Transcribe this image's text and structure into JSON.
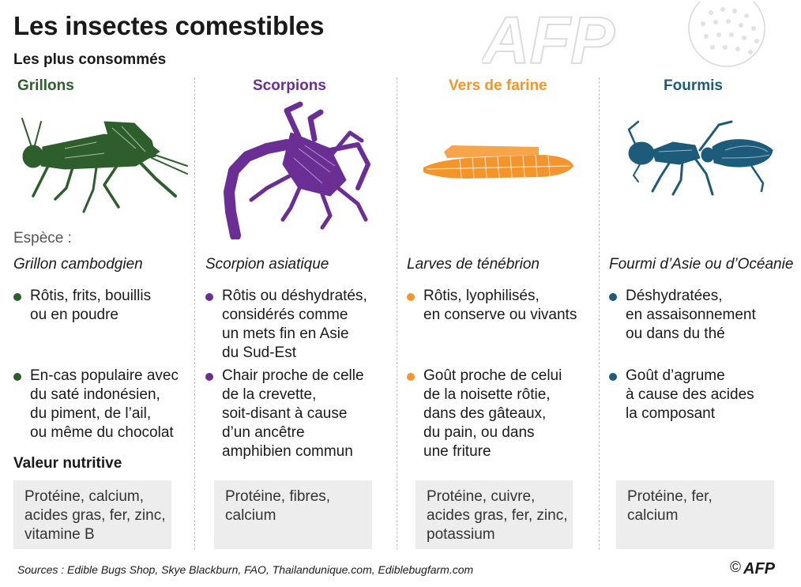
{
  "title": "Les insectes comestibles",
  "subtitle": "Les plus consommés",
  "species_label": "Espèce :",
  "nutrition_title": "Valeur nutritive",
  "colors": {
    "grillons": "#2e5e2b",
    "scorpions": "#6a2e95",
    "vers": "#f4952b",
    "fourmis": "#1d5b7a"
  },
  "columns": [
    {
      "name": "Grillons",
      "species": "Grillon cambodgien",
      "bullet1": [
        "Rôtis, frits, bouillis",
        "ou en poudre"
      ],
      "bullet2": [
        "En-cas populaire avec",
        "du saté indonésien,",
        "du piment, de l’ail,",
        "ou même du chocolat"
      ],
      "nutrition": [
        "Protéine, calcium,",
        "acides gras, fer, zinc,",
        "vitamine B"
      ]
    },
    {
      "name": "Scorpions",
      "species": "Scorpion asiatique",
      "bullet1": [
        "Rôtis ou déshydratés,",
        "considérés comme",
        "un mets fin en Asie",
        "du Sud-Est"
      ],
      "bullet2": [
        "Chair proche de celle",
        "de la crevette,",
        "soit-disant à cause",
        "d’un ancêtre",
        "amphibien commun"
      ],
      "nutrition": [
        "Protéine, fibres,",
        "calcium"
      ]
    },
    {
      "name": "Vers de farine",
      "species": "Larves de ténébrion",
      "bullet1": [
        "Rôtis, lyophilisés,",
        "en conserve ou vivants"
      ],
      "bullet2": [
        "Goût proche de celui",
        "de la noisette rôtie,",
        "dans des gâteaux,",
        "du pain, ou dans",
        "une friture"
      ],
      "nutrition": [
        "Protéine, cuivre,",
        "acides gras, fer, zinc,",
        "potassium"
      ]
    },
    {
      "name": "Fourmis",
      "species": "Fourmi d’Asie ou d’Océanie",
      "bullet1": [
        "Déshydratées,",
        "en assaisonnement",
        "ou dans du thé"
      ],
      "bullet2": [
        "Goût d’agrume",
        "à cause des acides",
        "la composant"
      ],
      "nutrition": [
        "Protéine, fer,",
        "calcium"
      ]
    }
  ],
  "sources": "Sources : Edible Bugs Shop, Skye Blackburn, FAO, Thailandunique.com, Ediblebugfarm.com",
  "copyright_symbol": "©",
  "copyright_brand": "AFP",
  "watermark": "AFP",
  "icons": [
    "cricket-illustration",
    "scorpion-illustration",
    "mealworm-illustration",
    "ant-illustration",
    "afp-logo"
  ]
}
